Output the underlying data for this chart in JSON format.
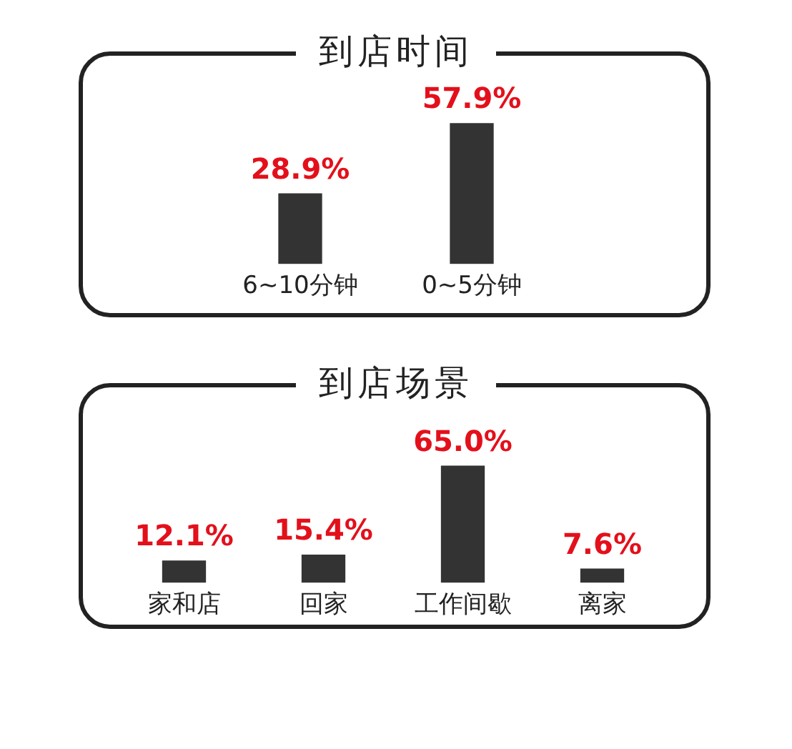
{
  "chart_data": [
    {
      "type": "bar",
      "title": "到店时间",
      "categories": [
        "6~10分钟",
        "0~5分钟"
      ],
      "values": [
        28.9,
        57.9
      ],
      "color": "#333333",
      "value_labels": [
        "28.9%",
        "57.9%"
      ]
    },
    {
      "type": "bar",
      "title": "到店场景",
      "categories": [
        "家和店",
        "回家",
        "工作间歇",
        "离家"
      ],
      "values": [
        12.1,
        15.4,
        65.0,
        7.6
      ],
      "color": "#333333",
      "value_labels": [
        "12.1%",
        "15.4%",
        "65.0%",
        "7.6%"
      ]
    }
  ]
}
